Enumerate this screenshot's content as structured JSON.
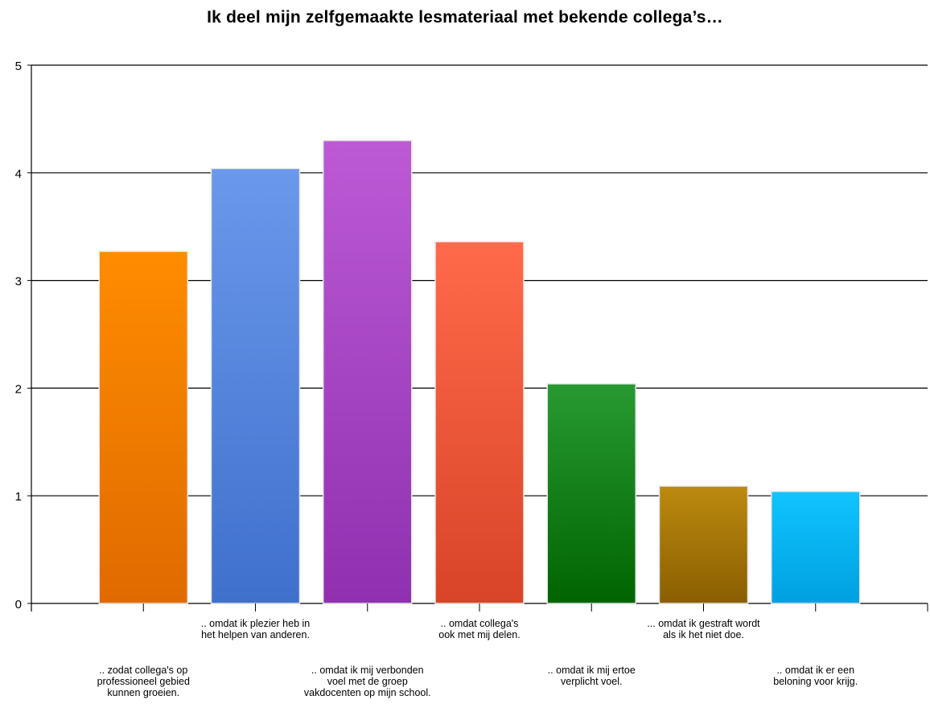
{
  "chart_data": {
    "type": "bar",
    "title": "Ik deel mijn zelfgemaakte lesmateriaal met bekende collega’s…",
    "xlabel": "",
    "ylabel": "",
    "ylim": [
      0,
      5
    ],
    "yticks": [
      "0",
      "1",
      "2",
      "3",
      "4",
      "5"
    ],
    "grid": true,
    "legend": "none",
    "categories": [
      ".. zodat collega's op professioneel gebied kunnen groeien.",
      ".. omdat ik plezier heb in het helpen van anderen.",
      ".. omdat ik mij verbonden voel met de groep vakdocenten op mijn school.",
      ".. omdat collega's ook met mij delen.",
      ".. omdat ik mij ertoe verplicht voel.",
      "... omdat ik gestraft wordt als ik het niet doe.",
      ".. omdat ik er een beloning voor krijg."
    ],
    "category_label_lines": [
      [
        ".. zodat collega's op",
        "professioneel gebied",
        "kunnen groeien."
      ],
      [
        ".. omdat ik plezier heb in",
        "het helpen van anderen."
      ],
      [
        ".. omdat ik mij verbonden",
        "voel met de groep",
        "vakdocenten op mijn school."
      ],
      [
        ".. omdat collega's",
        "ook met mij delen."
      ],
      [
        ".. omdat ik mij ertoe",
        "verplicht voel."
      ],
      [
        "... omdat ik gestraft wordt",
        "als ik het niet doe."
      ],
      [
        ".. omdat ik er een",
        "beloning voor krijg."
      ]
    ],
    "values": [
      3.27,
      4.04,
      4.3,
      3.36,
      2.04,
      1.09,
      1.04
    ],
    "colors": [
      [
        "#ff8c00",
        "#e06a00"
      ],
      [
        "#6a98ec",
        "#3f70cc"
      ],
      [
        "#bc5ad6",
        "#9030b0"
      ],
      [
        "#ff6a4a",
        "#d84428"
      ],
      [
        "#289a32",
        "#006400"
      ],
      [
        "#bc8a10",
        "#8a5e00"
      ],
      [
        "#10c4ff",
        "#00a0e0"
      ]
    ]
  }
}
